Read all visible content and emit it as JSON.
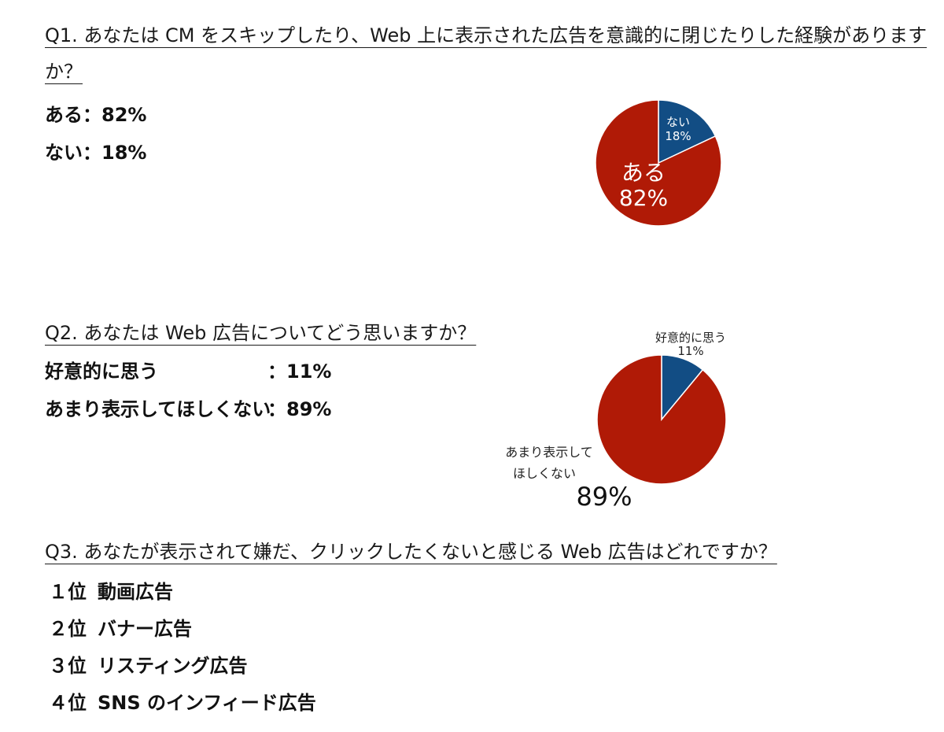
{
  "q1": {
    "title_line1": "Q1. あなたは CM をスキップしたり、Web 上に表示された広告を意識的に閉じたりした経験がありますか？",
    "title_line2": "か？",
    "answers": [
      {
        "label": "ある",
        "sep": "：",
        "value": "82%"
      },
      {
        "label": "ない",
        "sep": "：",
        "value": "18%"
      }
    ]
  },
  "q2": {
    "title": "Q2. あなたは Web 広告についてどう思いますか？",
    "answers": [
      {
        "label": "好意的に思う",
        "sep": "：",
        "value": "11%"
      },
      {
        "label": "あまり表示してほしくない",
        "sep": "：",
        "value": "89%"
      }
    ]
  },
  "q3": {
    "title": "Q3. あなたが表示されて嫌だ、クリックしたくないと感じる Web 広告はどれですか？",
    "ranks": [
      {
        "rank": "１位",
        "item": "動画広告"
      },
      {
        "rank": "２位",
        "item": "バナー広告"
      },
      {
        "rank": "３位",
        "item": "リスティング広告"
      },
      {
        "rank": "４位",
        "item": "SNS のインフィード広告"
      }
    ]
  },
  "colors": {
    "red": "#b01a06",
    "blue": "#124d84"
  },
  "chart_data": [
    {
      "type": "pie",
      "slices": [
        {
          "label": "ない",
          "value": 18,
          "value_label": "18%",
          "color": "#124d84"
        },
        {
          "label": "ある",
          "value": 82,
          "value_label": "82%",
          "color": "#b01a06"
        }
      ]
    },
    {
      "type": "pie",
      "slices": [
        {
          "label": "好意的に思う",
          "value": 11,
          "value_label": "11%",
          "color": "#124d84"
        },
        {
          "label": "あまり表示して\nほしくない",
          "label_line1": "あまり表示して",
          "label_line2": "ほしくない",
          "value": 89,
          "value_label": "89%",
          "color": "#b01a06"
        }
      ]
    }
  ]
}
